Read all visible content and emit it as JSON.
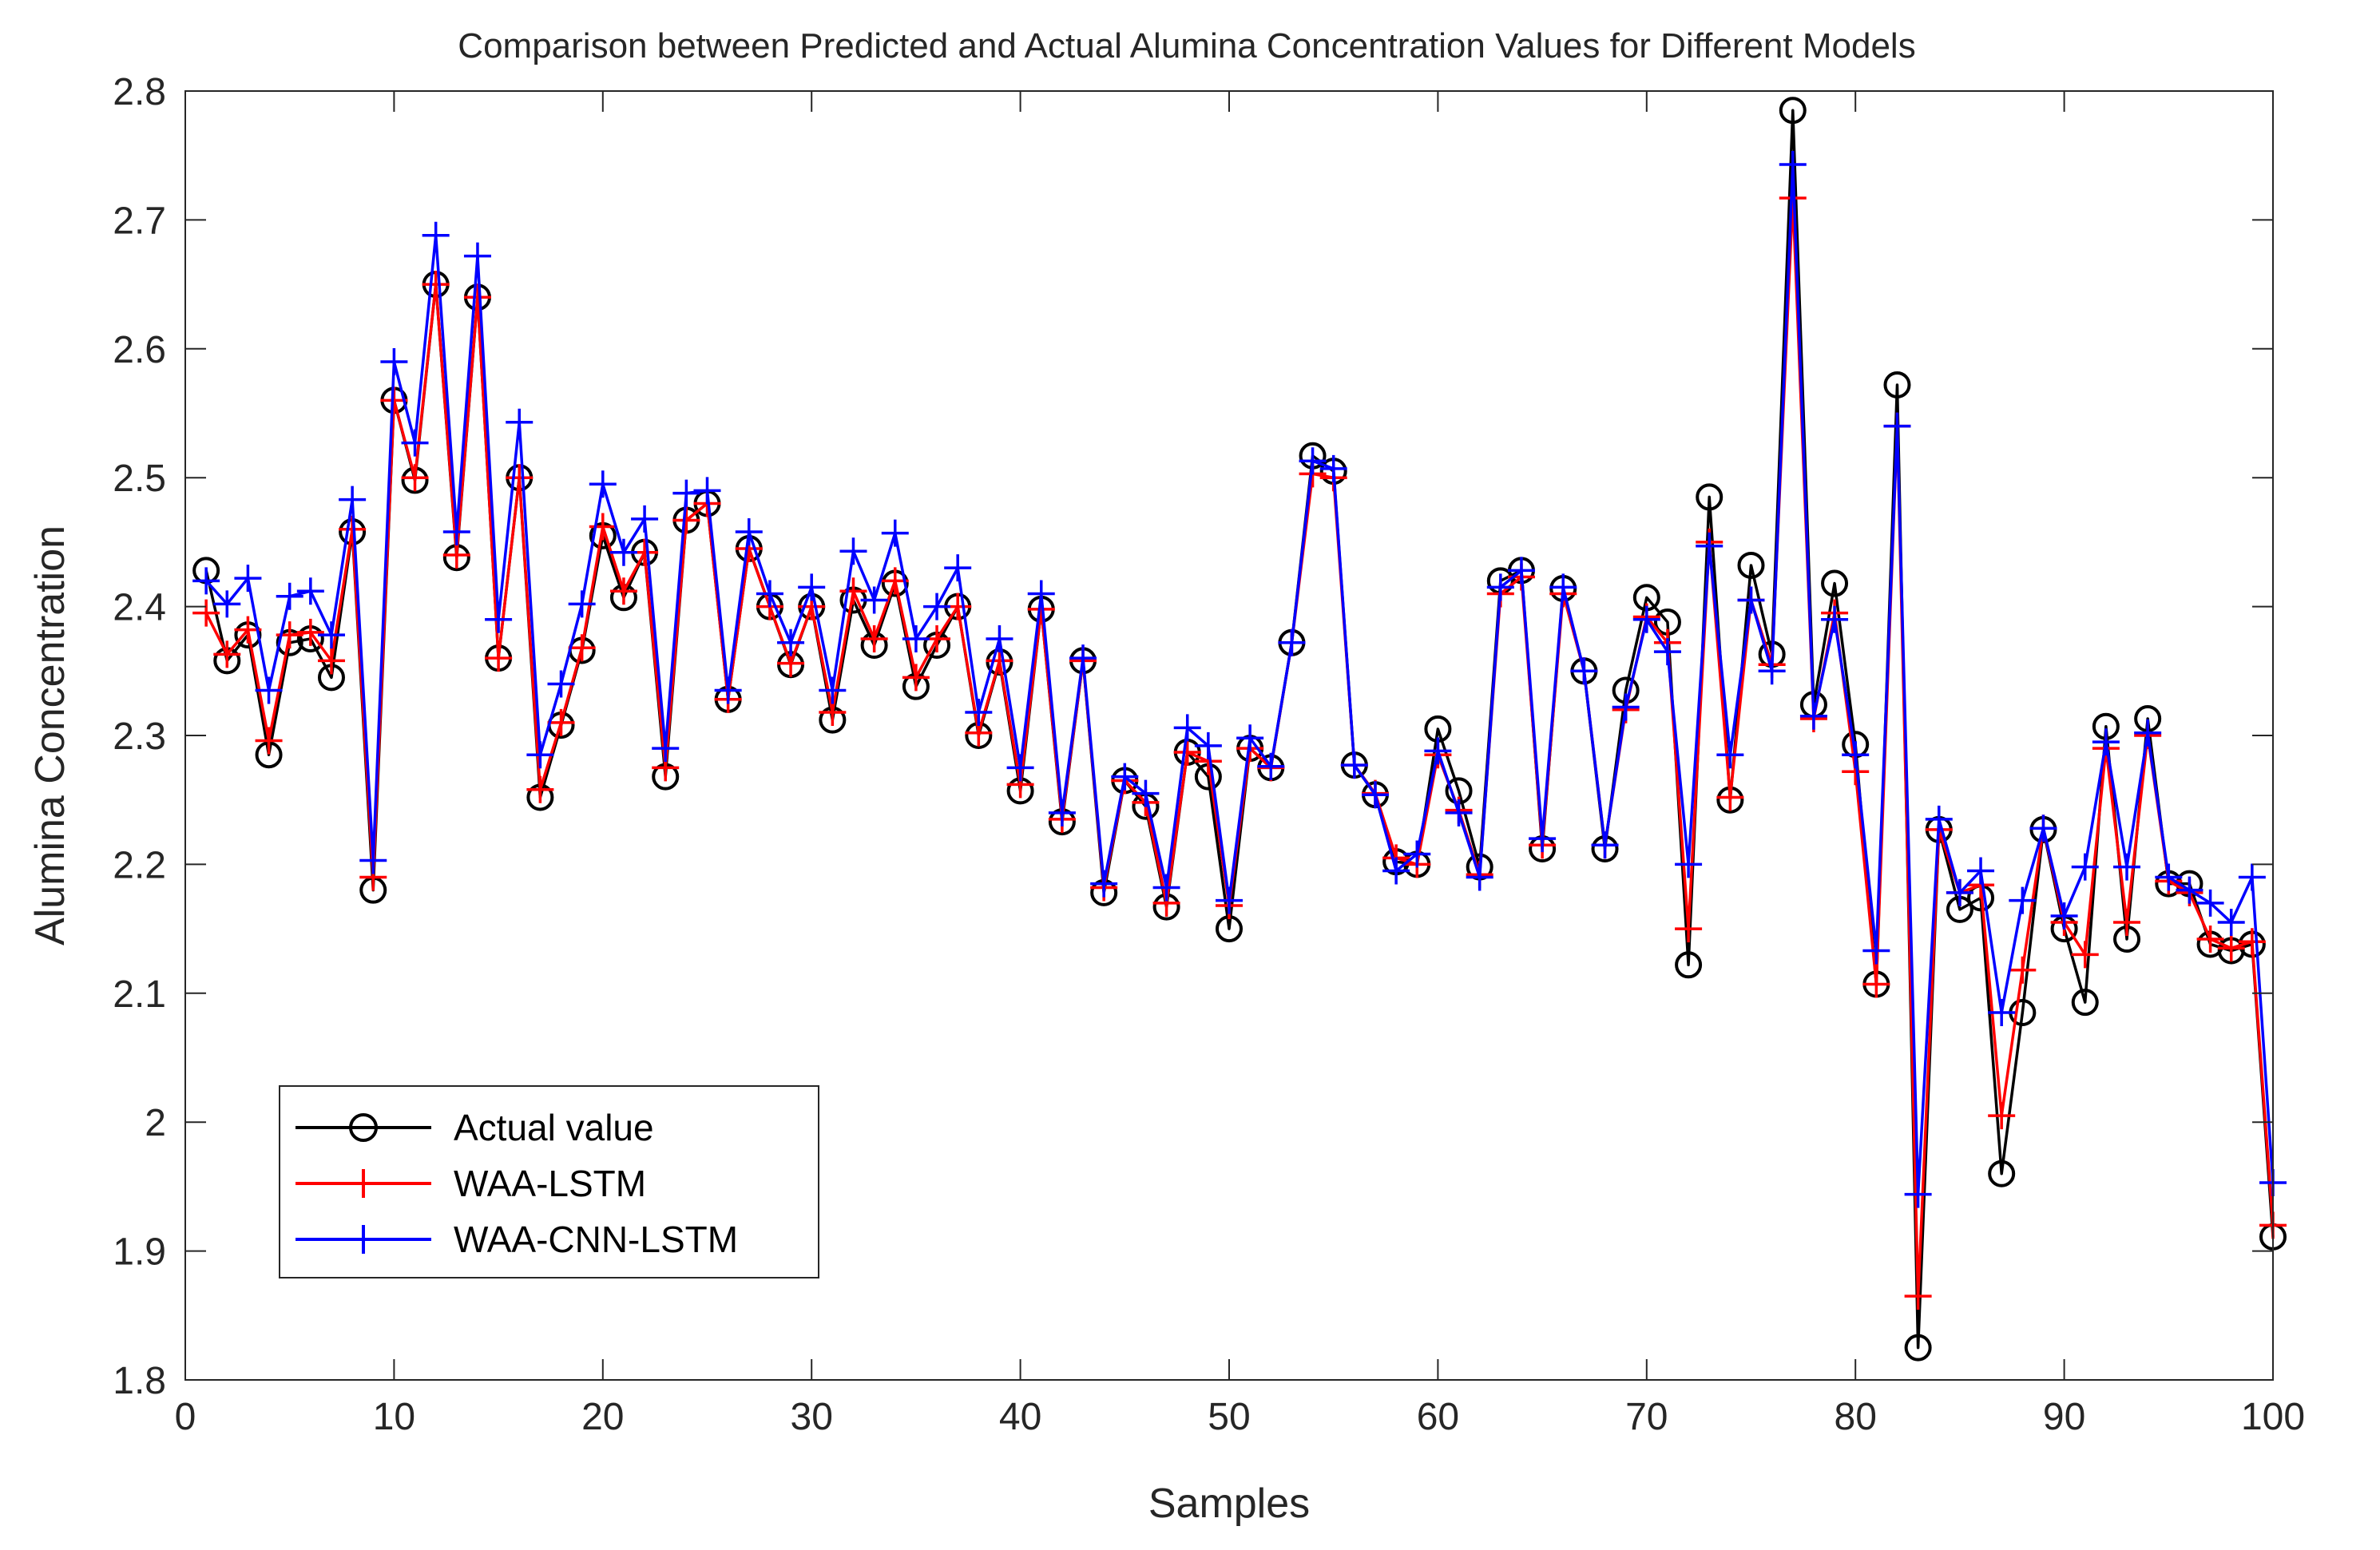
{
  "chart_data": {
    "type": "line",
    "title": "Comparison between Predicted and Actual Alumina Concentration Values for Different Models",
    "xlabel": "Samples",
    "ylabel": "Alumina Concentration",
    "xlim": [
      0,
      100
    ],
    "ylim": [
      1.8,
      2.8
    ],
    "xticks": [
      0,
      10,
      20,
      30,
      40,
      50,
      60,
      70,
      80,
      90,
      100
    ],
    "yticks": [
      1.8,
      1.9,
      2.0,
      2.1,
      2.2,
      2.3,
      2.4,
      2.5,
      2.6,
      2.7,
      2.8
    ],
    "xtick_labels": [
      "0",
      "10",
      "20",
      "30",
      "40",
      "50",
      "60",
      "70",
      "80",
      "90",
      "100"
    ],
    "ytick_labels": [
      "1.8",
      "1.9",
      "2",
      "2.1",
      "2.2",
      "2.3",
      "2.4",
      "2.5",
      "2.6",
      "2.7",
      "2.8"
    ],
    "grid": false,
    "legend_position": "bottom-left",
    "x": [
      1,
      2,
      3,
      4,
      5,
      6,
      7,
      8,
      9,
      10,
      11,
      12,
      13,
      14,
      15,
      16,
      17,
      18,
      19,
      20,
      21,
      22,
      23,
      24,
      25,
      26,
      27,
      28,
      29,
      30,
      31,
      32,
      33,
      34,
      35,
      36,
      37,
      38,
      39,
      40,
      41,
      42,
      43,
      44,
      45,
      46,
      47,
      48,
      49,
      50,
      51,
      52,
      53,
      54,
      55,
      56,
      57,
      58,
      59,
      60,
      61,
      62,
      63,
      64,
      65,
      66,
      67,
      68,
      69,
      70,
      71,
      72,
      73,
      74,
      75,
      76,
      77,
      78,
      79,
      80,
      81,
      82,
      83,
      84,
      85,
      86,
      87,
      88,
      89,
      90,
      91,
      92,
      93,
      94,
      95,
      96,
      97,
      98,
      99,
      100
    ],
    "series": [
      {
        "name": "Actual value",
        "color": "#000000",
        "marker": "circle",
        "values": [
          2.428,
          2.358,
          2.378,
          2.285,
          2.372,
          2.375,
          2.345,
          2.458,
          2.18,
          2.56,
          2.498,
          2.65,
          2.438,
          2.64,
          2.36,
          2.5,
          2.252,
          2.308,
          2.366,
          2.455,
          2.407,
          2.442,
          2.268,
          2.467,
          2.48,
          2.328,
          2.445,
          2.4,
          2.355,
          2.4,
          2.312,
          2.405,
          2.37,
          2.418,
          2.338,
          2.37,
          2.4,
          2.3,
          2.357,
          2.257,
          2.398,
          2.233,
          2.358,
          2.178,
          2.265,
          2.245,
          2.167,
          2.287,
          2.268,
          2.15,
          2.29,
          2.275,
          2.372,
          2.517,
          2.505,
          2.277,
          2.254,
          2.202,
          2.2,
          2.305,
          2.257,
          2.198,
          2.42,
          2.428,
          2.212,
          2.414,
          2.35,
          2.212,
          2.335,
          2.407,
          2.388,
          2.122,
          2.485,
          2.25,
          2.432,
          2.363,
          2.785,
          2.324,
          2.418,
          2.293,
          2.107,
          2.572,
          1.825,
          2.227,
          2.165,
          2.174,
          1.96,
          2.085,
          2.227,
          2.15,
          2.093,
          2.307,
          2.142,
          2.313,
          2.185,
          2.185,
          2.138,
          2.133,
          2.138,
          1.911
        ]
      },
      {
        "name": "WAA-LSTM",
        "color": "#ff0000",
        "marker": "plus",
        "values": [
          2.395,
          2.363,
          2.382,
          2.296,
          2.378,
          2.38,
          2.358,
          2.46,
          2.19,
          2.56,
          2.5,
          2.65,
          2.44,
          2.64,
          2.36,
          2.5,
          2.258,
          2.31,
          2.368,
          2.462,
          2.412,
          2.442,
          2.275,
          2.467,
          2.48,
          2.328,
          2.445,
          2.4,
          2.356,
          2.4,
          2.318,
          2.412,
          2.375,
          2.42,
          2.345,
          2.375,
          2.4,
          2.302,
          2.358,
          2.262,
          2.398,
          2.235,
          2.358,
          2.182,
          2.265,
          2.248,
          2.17,
          2.287,
          2.28,
          2.168,
          2.29,
          2.275,
          2.372,
          2.503,
          2.5,
          2.277,
          2.255,
          2.205,
          2.2,
          2.285,
          2.242,
          2.192,
          2.41,
          2.423,
          2.215,
          2.41,
          2.35,
          2.215,
          2.32,
          2.392,
          2.372,
          2.15,
          2.45,
          2.252,
          2.405,
          2.355,
          2.717,
          2.313,
          2.395,
          2.272,
          2.107,
          2.54,
          1.865,
          2.227,
          2.178,
          2.184,
          2.005,
          2.118,
          2.228,
          2.155,
          2.13,
          2.29,
          2.155,
          2.3,
          2.187,
          2.178,
          2.142,
          2.135,
          2.14,
          1.92
        ]
      },
      {
        "name": "WAA-CNN-LSTM",
        "color": "#0000ff",
        "marker": "plus",
        "values": [
          2.42,
          2.402,
          2.422,
          2.335,
          2.408,
          2.412,
          2.378,
          2.483,
          2.203,
          2.59,
          2.527,
          2.688,
          2.458,
          2.672,
          2.39,
          2.543,
          2.285,
          2.34,
          2.402,
          2.495,
          2.442,
          2.468,
          2.29,
          2.488,
          2.49,
          2.335,
          2.458,
          2.41,
          2.372,
          2.415,
          2.335,
          2.443,
          2.405,
          2.457,
          2.375,
          2.4,
          2.43,
          2.318,
          2.375,
          2.275,
          2.41,
          2.24,
          2.36,
          2.185,
          2.268,
          2.255,
          2.182,
          2.306,
          2.292,
          2.172,
          2.298,
          2.276,
          2.372,
          2.513,
          2.507,
          2.277,
          2.254,
          2.195,
          2.208,
          2.288,
          2.24,
          2.19,
          2.415,
          2.428,
          2.22,
          2.415,
          2.35,
          2.215,
          2.322,
          2.39,
          2.365,
          2.2,
          2.447,
          2.285,
          2.405,
          2.35,
          2.743,
          2.315,
          2.39,
          2.285,
          2.133,
          2.54,
          1.944,
          2.235,
          2.178,
          2.195,
          2.085,
          2.172,
          2.228,
          2.16,
          2.198,
          2.295,
          2.198,
          2.302,
          2.19,
          2.18,
          2.17,
          2.155,
          2.19,
          1.953
        ]
      }
    ]
  }
}
